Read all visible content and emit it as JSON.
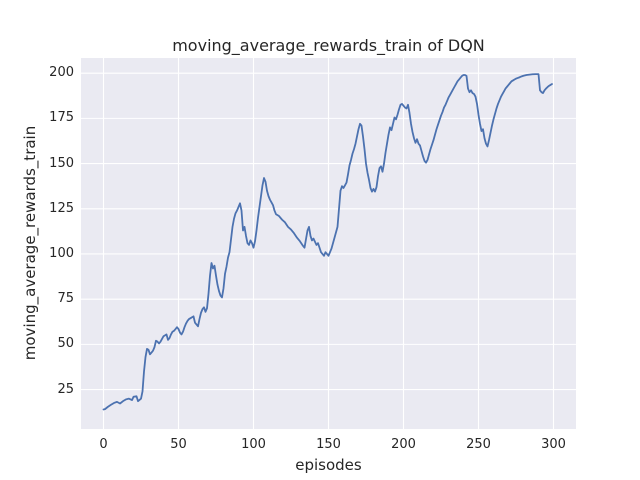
{
  "chart_data": {
    "type": "line",
    "title": "moving_average_rewards_train of DQN",
    "xlabel": "episodes",
    "ylabel": "moving_average_rewards_train",
    "xlim": [
      -15,
      315
    ],
    "ylim": [
      3.2,
      208.4
    ],
    "x_ticks": [
      0,
      50,
      100,
      150,
      200,
      250,
      300
    ],
    "y_ticks": [
      25,
      50,
      75,
      100,
      125,
      150,
      175,
      200
    ],
    "grid": true,
    "legend_position": "none",
    "style": {
      "figure_bg": "#FFFFFF",
      "plot_bg": "#EAEAF2",
      "grid_color": "#FFFFFF",
      "line_color": "#4C72B0",
      "text_color": "#262626",
      "line_width": 1.8
    },
    "series": [
      {
        "name": "moving_average_rewards_train",
        "points": [
          [
            0,
            14.0
          ],
          [
            1,
            14.2
          ],
          [
            3,
            15.5
          ],
          [
            5,
            16.6
          ],
          [
            7,
            17.6
          ],
          [
            9,
            18.2
          ],
          [
            11,
            17.3
          ],
          [
            13,
            18.6
          ],
          [
            15,
            19.6
          ],
          [
            17,
            20.0
          ],
          [
            19,
            19.2
          ],
          [
            20,
            21.0
          ],
          [
            22,
            21.3
          ],
          [
            23,
            18.6
          ],
          [
            25,
            20.0
          ],
          [
            26,
            24.0
          ],
          [
            27,
            35.0
          ],
          [
            28,
            43.0
          ],
          [
            29,
            47.5
          ],
          [
            30,
            47.0
          ],
          [
            31,
            44.5
          ],
          [
            32,
            45.5
          ],
          [
            33,
            46.5
          ],
          [
            34,
            48.5
          ],
          [
            35,
            52.0
          ],
          [
            36,
            51.5
          ],
          [
            37,
            50.5
          ],
          [
            38,
            51.5
          ],
          [
            39,
            53.0
          ],
          [
            40,
            54.5
          ],
          [
            41,
            55.0
          ],
          [
            42,
            55.5
          ],
          [
            43,
            52.5
          ],
          [
            44,
            53.5
          ],
          [
            45,
            55.5
          ],
          [
            46,
            57.0
          ],
          [
            47,
            57.5
          ],
          [
            48,
            58.5
          ],
          [
            49,
            59.5
          ],
          [
            50,
            58.5
          ],
          [
            51,
            56.5
          ],
          [
            52,
            55.5
          ],
          [
            53,
            57.0
          ],
          [
            54,
            59.5
          ],
          [
            55,
            61.5
          ],
          [
            56,
            63.0
          ],
          [
            57,
            64.0
          ],
          [
            58,
            64.5
          ],
          [
            60,
            65.5
          ],
          [
            61,
            62.0
          ],
          [
            63,
            60.0
          ],
          [
            64,
            64.0
          ],
          [
            65,
            67.5
          ],
          [
            66,
            69.5
          ],
          [
            67,
            70.5
          ],
          [
            68,
            68.0
          ],
          [
            69,
            70.0
          ],
          [
            70,
            78.0
          ],
          [
            71,
            88.0
          ],
          [
            72,
            95.0
          ],
          [
            73,
            92.0
          ],
          [
            74,
            93.5
          ],
          [
            75,
            88.0
          ],
          [
            76,
            83.0
          ],
          [
            77,
            79.5
          ],
          [
            78,
            77.0
          ],
          [
            79,
            76.0
          ],
          [
            80,
            81.0
          ],
          [
            81,
            89.0
          ],
          [
            82,
            93.0
          ],
          [
            83,
            98.0
          ],
          [
            84,
            101.0
          ],
          [
            85,
            108.0
          ],
          [
            86,
            115.0
          ],
          [
            87,
            119.5
          ],
          [
            88,
            122.5
          ],
          [
            89,
            124.0
          ],
          [
            90,
            126.0
          ],
          [
            91,
            128.0
          ],
          [
            92,
            124.0
          ],
          [
            93,
            113.0
          ],
          [
            94,
            115.0
          ],
          [
            95,
            110.0
          ],
          [
            96,
            106.0
          ],
          [
            97,
            105.0
          ],
          [
            98,
            107.5
          ],
          [
            99,
            106.0
          ],
          [
            100,
            103.5
          ],
          [
            101,
            107.0
          ],
          [
            102,
            113.0
          ],
          [
            103,
            120.0
          ],
          [
            104,
            126.0
          ],
          [
            105,
            132.0
          ],
          [
            106,
            138.0
          ],
          [
            107,
            142.0
          ],
          [
            108,
            140.0
          ],
          [
            109,
            135.0
          ],
          [
            110,
            132.0
          ],
          [
            111,
            130.0
          ],
          [
            112,
            128.5
          ],
          [
            113,
            127.0
          ],
          [
            114,
            124.0
          ],
          [
            115,
            122.0
          ],
          [
            117,
            121.0
          ],
          [
            119,
            119.0
          ],
          [
            121,
            117.5
          ],
          [
            123,
            115.0
          ],
          [
            125,
            113.5
          ],
          [
            127,
            111.5
          ],
          [
            129,
            109.0
          ],
          [
            131,
            107.0
          ],
          [
            133,
            104.5
          ],
          [
            134,
            103.5
          ],
          [
            136,
            113.0
          ],
          [
            137,
            115.0
          ],
          [
            138,
            110.0
          ],
          [
            139,
            107.5
          ],
          [
            140,
            108.5
          ],
          [
            142,
            105.0
          ],
          [
            143,
            106.0
          ],
          [
            145,
            101.0
          ],
          [
            147,
            99.0
          ],
          [
            148,
            101.0
          ],
          [
            150,
            99.0
          ],
          [
            152,
            103.0
          ],
          [
            154,
            109.0
          ],
          [
            156,
            115.0
          ],
          [
            157,
            125.0
          ],
          [
            158,
            135.0
          ],
          [
            159,
            137.5
          ],
          [
            160,
            136.5
          ],
          [
            161,
            138.0
          ],
          [
            162,
            139.5
          ],
          [
            163,
            144.0
          ],
          [
            164,
            149.0
          ],
          [
            165,
            152.0
          ],
          [
            166,
            155.5
          ],
          [
            167,
            158.0
          ],
          [
            168,
            161.0
          ],
          [
            169,
            165.0
          ],
          [
            170,
            169.0
          ],
          [
            171,
            172.0
          ],
          [
            172,
            171.0
          ],
          [
            173,
            165.0
          ],
          [
            174,
            158.0
          ],
          [
            175,
            150.0
          ],
          [
            176,
            145.0
          ],
          [
            177,
            141.0
          ],
          [
            178,
            136.5
          ],
          [
            179,
            134.5
          ],
          [
            180,
            136.0
          ],
          [
            181,
            134.5
          ],
          [
            182,
            137.0
          ],
          [
            183,
            143.0
          ],
          [
            184,
            147.5
          ],
          [
            185,
            148.5
          ],
          [
            186,
            145.5
          ],
          [
            187,
            150.0
          ],
          [
            188,
            156.0
          ],
          [
            189,
            161.0
          ],
          [
            190,
            166.0
          ],
          [
            191,
            170.0
          ],
          [
            192,
            168.5
          ],
          [
            193,
            172.0
          ],
          [
            194,
            175.5
          ],
          [
            195,
            174.5
          ],
          [
            196,
            177.0
          ],
          [
            197,
            180.0
          ],
          [
            198,
            182.5
          ],
          [
            199,
            183.0
          ],
          [
            200,
            182.0
          ],
          [
            201,
            181.0
          ],
          [
            202,
            180.5
          ],
          [
            203,
            182.5
          ],
          [
            204,
            178.0
          ],
          [
            205,
            172.0
          ],
          [
            206,
            167.5
          ],
          [
            207,
            164.0
          ],
          [
            208,
            161.5
          ],
          [
            209,
            163.5
          ],
          [
            210,
            161.0
          ],
          [
            211,
            160.0
          ],
          [
            212,
            157.0
          ],
          [
            213,
            154.0
          ],
          [
            214,
            151.5
          ],
          [
            215,
            150.5
          ],
          [
            216,
            152.0
          ],
          [
            217,
            155.0
          ],
          [
            218,
            158.0
          ],
          [
            219,
            160.5
          ],
          [
            220,
            163.0
          ],
          [
            221,
            166.0
          ],
          [
            222,
            169.0
          ],
          [
            223,
            171.5
          ],
          [
            224,
            174.0
          ],
          [
            225,
            176.5
          ],
          [
            226,
            178.5
          ],
          [
            227,
            181.0
          ],
          [
            228,
            182.5
          ],
          [
            229,
            184.5
          ],
          [
            230,
            186.5
          ],
          [
            231,
            188.0
          ],
          [
            232,
            189.5
          ],
          [
            233,
            191.0
          ],
          [
            234,
            192.5
          ],
          [
            235,
            194.0
          ],
          [
            236,
            195.5
          ],
          [
            237,
            196.5
          ],
          [
            238,
            197.5
          ],
          [
            239,
            198.5
          ],
          [
            240,
            199.0
          ],
          [
            241,
            199.0
          ],
          [
            242,
            198.5
          ],
          [
            243,
            191.5
          ],
          [
            244,
            189.5
          ],
          [
            245,
            190.5
          ],
          [
            246,
            189.0
          ],
          [
            247,
            188.5
          ],
          [
            248,
            187.0
          ],
          [
            249,
            183.0
          ],
          [
            250,
            177.0
          ],
          [
            251,
            172.0
          ],
          [
            252,
            168.0
          ],
          [
            253,
            169.0
          ],
          [
            254,
            164.0
          ],
          [
            255,
            161.0
          ],
          [
            256,
            159.5
          ],
          [
            257,
            163.0
          ],
          [
            258,
            167.0
          ],
          [
            259,
            171.0
          ],
          [
            260,
            174.5
          ],
          [
            261,
            177.5
          ],
          [
            262,
            180.5
          ],
          [
            263,
            183.0
          ],
          [
            264,
            185.0
          ],
          [
            265,
            187.0
          ],
          [
            266,
            188.5
          ],
          [
            267,
            190.0
          ],
          [
            268,
            191.5
          ],
          [
            269,
            192.5
          ],
          [
            270,
            193.5
          ],
          [
            271,
            194.5
          ],
          [
            272,
            195.5
          ],
          [
            273,
            196.0
          ],
          [
            274,
            196.5
          ],
          [
            275,
            197.0
          ],
          [
            276,
            197.3
          ],
          [
            277,
            197.6
          ],
          [
            278,
            198.0
          ],
          [
            279,
            198.3
          ],
          [
            280,
            198.6
          ],
          [
            282,
            199.0
          ],
          [
            284,
            199.2
          ],
          [
            286,
            199.4
          ],
          [
            288,
            199.5
          ],
          [
            290,
            199.5
          ],
          [
            291,
            190.5
          ],
          [
            292,
            189.5
          ],
          [
            293,
            189.0
          ],
          [
            294,
            190.5
          ],
          [
            295,
            191.5
          ],
          [
            296,
            192.3
          ],
          [
            297,
            193.0
          ],
          [
            298,
            193.5
          ],
          [
            299,
            194.0
          ]
        ]
      }
    ]
  }
}
